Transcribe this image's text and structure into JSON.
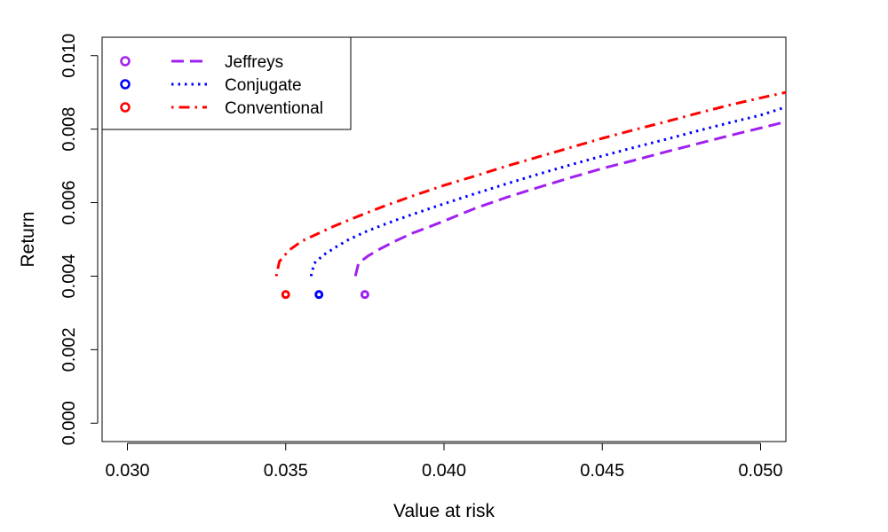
{
  "chart_data": {
    "type": "line",
    "title": "",
    "xlabel": "Value at risk",
    "ylabel": "Return",
    "xlim": [
      0.0292,
      0.0508
    ],
    "ylim": [
      -0.0005,
      0.0105
    ],
    "xticks": [
      "0.030",
      "0.035",
      "0.040",
      "0.045",
      "0.050"
    ],
    "xtick_values": [
      0.03,
      0.035,
      0.04,
      0.045,
      0.05
    ],
    "yticks": [
      "0.000",
      "0.002",
      "0.004",
      "0.006",
      "0.008",
      "0.010"
    ],
    "ytick_values": [
      0.0,
      0.002,
      0.004,
      0.006,
      0.008,
      0.01
    ],
    "grid": false,
    "legend_position": "top-left",
    "series": [
      {
        "name": "Jeffreys",
        "color": "#a020f0",
        "dash": "dashed",
        "x": [
          0.0372,
          0.0373,
          0.0376,
          0.038,
          0.0385,
          0.039,
          0.0395,
          0.04,
          0.041,
          0.042,
          0.043,
          0.044,
          0.045,
          0.046,
          0.047,
          0.048,
          0.049,
          0.05,
          0.0508
        ],
        "y": [
          0.004,
          0.00435,
          0.00455,
          0.00475,
          0.00497,
          0.00517,
          0.00533,
          0.0055,
          0.00585,
          0.00615,
          0.00642,
          0.00668,
          0.00693,
          0.00715,
          0.00738,
          0.0076,
          0.00782,
          0.00803,
          0.0082
        ],
        "point": {
          "x": 0.0375,
          "y": 0.0035
        }
      },
      {
        "name": "Conjugate",
        "color": "#0000ff",
        "dash": "dotted",
        "x": [
          0.0358,
          0.0359,
          0.0362,
          0.0366,
          0.037,
          0.0375,
          0.038,
          0.0385,
          0.039,
          0.04,
          0.041,
          0.042,
          0.043,
          0.044,
          0.045,
          0.046,
          0.047,
          0.048,
          0.049,
          0.05,
          0.0508
        ],
        "y": [
          0.004,
          0.00435,
          0.00458,
          0.0048,
          0.005,
          0.0052,
          0.00537,
          0.00553,
          0.00568,
          0.00597,
          0.00625,
          0.00652,
          0.00678,
          0.00703,
          0.00727,
          0.0075,
          0.00772,
          0.00795,
          0.00817,
          0.00838,
          0.0086
        ],
        "point": {
          "x": 0.03605,
          "y": 0.0035
        }
      },
      {
        "name": "Conventional",
        "color": "#ff0000",
        "dash": "dotdash",
        "x": [
          0.0347,
          0.0348,
          0.0351,
          0.0355,
          0.036,
          0.0365,
          0.037,
          0.0375,
          0.038,
          0.039,
          0.04,
          0.041,
          0.042,
          0.043,
          0.044,
          0.045,
          0.046,
          0.047,
          0.048,
          0.049,
          0.05,
          0.0508
        ],
        "y": [
          0.004,
          0.0044,
          0.0047,
          0.00495,
          0.00515,
          0.00535,
          0.00553,
          0.0057,
          0.00587,
          0.00618,
          0.00647,
          0.00673,
          0.007,
          0.00725,
          0.0075,
          0.00775,
          0.00798,
          0.0082,
          0.00843,
          0.00865,
          0.00885,
          0.009
        ],
        "point": {
          "x": 0.035,
          "y": 0.0035
        }
      }
    ]
  }
}
